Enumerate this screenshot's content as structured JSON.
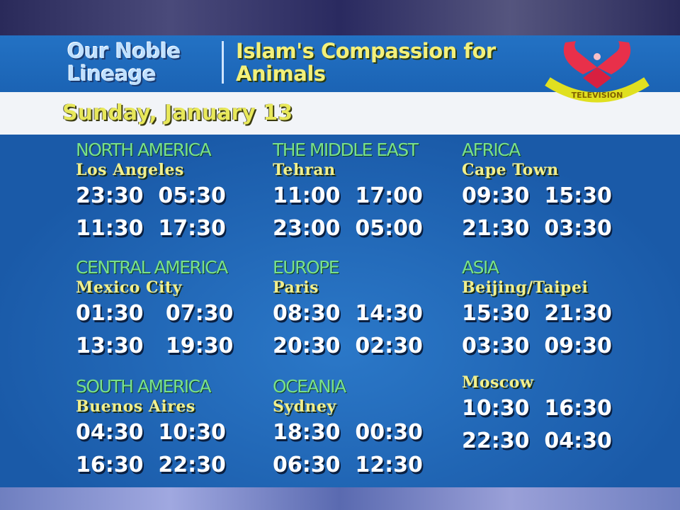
{
  "header": {
    "show_title": "Our Noble Lineage",
    "episode_title": "Islam's Compassion for Animals",
    "logo_text": "TELEVISION"
  },
  "date": "Sunday, January 13",
  "schedule": [
    {
      "region": "NORTH AMERICA",
      "city": "Los Angeles",
      "times": [
        "23:30  05:30",
        "11:30  17:30"
      ]
    },
    {
      "region": "THE MIDDLE EAST",
      "city": "Tehran",
      "times": [
        "11:00  17:00",
        "23:00  05:00"
      ]
    },
    {
      "region": "AFRICA",
      "city": "Cape Town",
      "times": [
        "09:30  15:30",
        "21:30  03:30"
      ]
    },
    {
      "region": "CENTRAL AMERICA",
      "city": "Mexico City",
      "times": [
        "01:30   07:30",
        "13:30   19:30"
      ]
    },
    {
      "region": "EUROPE",
      "city": "Paris",
      "times": [
        "08:30  14:30",
        "20:30  02:30"
      ]
    },
    {
      "region": "ASIA",
      "city": "Beijing/Taipei",
      "times": [
        "15:30  21:30",
        "03:30  09:30"
      ]
    },
    {
      "region": "SOUTH AMERICA",
      "city": "Buenos Aires",
      "times": [
        "04:30  10:30",
        "16:30  22:30"
      ]
    },
    {
      "region": "OCEANIA",
      "city": "Sydney",
      "times": [
        "18:30  00:30",
        "06:30  12:30"
      ]
    },
    {
      "region": "",
      "city": "Moscow",
      "times": [
        "10:30  16:30",
        "22:30  04:30"
      ]
    }
  ],
  "colors": {
    "background": "#1f5fae",
    "region": "#79e08a",
    "city": "#f1ef8c",
    "date": "#e8e85a"
  }
}
